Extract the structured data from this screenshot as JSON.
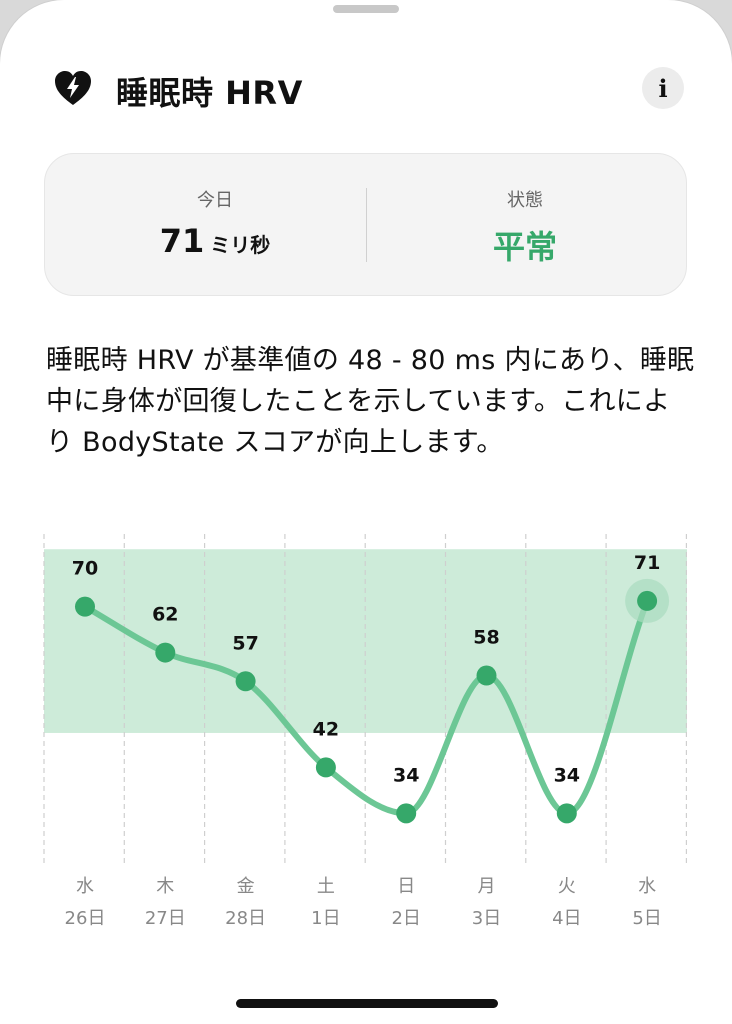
{
  "header": {
    "title": "睡眠時 HRV",
    "icon": "heart-bolt-icon",
    "info_label": "i"
  },
  "summary": {
    "today_label": "今日",
    "today_value": "71",
    "today_unit": "ミリ秒",
    "status_label": "状態",
    "status_value": "平常",
    "status_color": "#36a86a"
  },
  "description": "睡眠時 HRV が基準値の 48 - 80 ms 内にあり、睡眠中に身体が回復したことを示しています。これにより BodyState スコアが向上します。",
  "chart_data": {
    "type": "line",
    "categories": [
      "水 26日",
      "木 27日",
      "金 28日",
      "土 1日",
      "日 2日",
      "月 3日",
      "火 4日",
      "水 5日"
    ],
    "weekdays": [
      "水",
      "木",
      "金",
      "土",
      "日",
      "月",
      "火",
      "水"
    ],
    "dates": [
      "26日",
      "27日",
      "28日",
      "1日",
      "2日",
      "3日",
      "4日",
      "5日"
    ],
    "values": [
      70,
      62,
      57,
      42,
      34,
      58,
      34,
      71
    ],
    "baseline_range": [
      48,
      80
    ],
    "ylim": [
      25,
      83
    ],
    "line_color": "#6cc795",
    "point_color": "#36a86a",
    "band_color": "#cdebd9",
    "highlight_last": true
  }
}
